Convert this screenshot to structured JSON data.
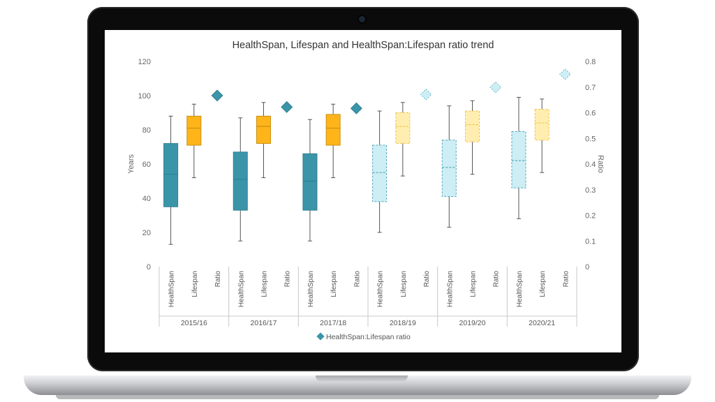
{
  "device": {
    "camera_icon": "camera-icon"
  },
  "chart_data": {
    "type": "box",
    "title": "HealthSpan, Lifespan and HealthSpan:Lifespan ratio trend",
    "ylabel": "Years",
    "y2label": "Ratio",
    "ylim": [
      0,
      120
    ],
    "y2lim": [
      0,
      0.8
    ],
    "yticks": [
      "0",
      "20",
      "40",
      "60",
      "80",
      "100",
      "120"
    ],
    "y2ticks": [
      "0",
      "0.1",
      "0.2",
      "0.3",
      "0.4",
      "0.5",
      "0.6",
      "0.7",
      "0.8"
    ],
    "categories": [
      "2015/16",
      "2016/17",
      "2017/18",
      "2018/19",
      "2019/20",
      "2020/21"
    ],
    "subcategories": [
      "HealthSpan",
      "Lifespan",
      "Ratio"
    ],
    "legend": [
      {
        "label": "HealthSpan:Lifespan ratio",
        "marker": "diamond",
        "color": "#3b95a9"
      }
    ],
    "colors": {
      "healthspan": "#3b95a9",
      "healthspan_projected": "#cdeef4",
      "lifespan": "#ffb51a",
      "lifespan_projected": "#ffeeb0",
      "ratio": "#3b95a9",
      "ratio_projected": "#cdeef4"
    },
    "series": [
      {
        "name": "HealthSpan",
        "boxes": [
          {
            "year": "2015/16",
            "min": 13,
            "q1": 35,
            "median": 54,
            "q3": 72,
            "max": 88,
            "projected": false
          },
          {
            "year": "2016/17",
            "min": 15,
            "q1": 33,
            "median": 51,
            "q3": 67,
            "max": 87,
            "projected": false
          },
          {
            "year": "2017/18",
            "min": 15,
            "q1": 33,
            "median": 50,
            "q3": 66,
            "max": 86,
            "projected": false
          },
          {
            "year": "2018/19",
            "min": 20,
            "q1": 38,
            "median": 55,
            "q3": 71,
            "max": 91,
            "projected": true
          },
          {
            "year": "2019/20",
            "min": 23,
            "q1": 41,
            "median": 58,
            "q3": 74,
            "max": 94,
            "projected": true
          },
          {
            "year": "2020/21",
            "min": 28,
            "q1": 46,
            "median": 62,
            "q3": 79,
            "max": 99,
            "projected": true
          }
        ]
      },
      {
        "name": "Lifespan",
        "boxes": [
          {
            "year": "2015/16",
            "min": 52,
            "q1": 71,
            "median": 81,
            "q3": 88,
            "max": 95,
            "projected": false
          },
          {
            "year": "2016/17",
            "min": 52,
            "q1": 72,
            "median": 82,
            "q3": 88,
            "max": 96,
            "projected": false
          },
          {
            "year": "2017/18",
            "min": 52,
            "q1": 71,
            "median": 81,
            "q3": 89,
            "max": 95,
            "projected": false
          },
          {
            "year": "2018/19",
            "min": 53,
            "q1": 72,
            "median": 82,
            "q3": 90,
            "max": 96,
            "projected": true
          },
          {
            "year": "2019/20",
            "min": 54,
            "q1": 73,
            "median": 83,
            "q3": 91,
            "max": 97,
            "projected": true
          },
          {
            "year": "2020/21",
            "min": 55,
            "q1": 74,
            "median": 84,
            "q3": 92,
            "max": 98,
            "projected": true
          }
        ]
      },
      {
        "name": "HealthSpan:Lifespan ratio",
        "points": [
          {
            "year": "2015/16",
            "value": 0.667,
            "projected": false
          },
          {
            "year": "2016/17",
            "value": 0.622,
            "projected": false
          },
          {
            "year": "2017/18",
            "value": 0.617,
            "projected": false
          },
          {
            "year": "2018/19",
            "value": 0.671,
            "projected": true
          },
          {
            "year": "2019/20",
            "value": 0.699,
            "projected": true
          },
          {
            "year": "2020/21",
            "value": 0.75,
            "projected": true
          }
        ]
      }
    ]
  }
}
